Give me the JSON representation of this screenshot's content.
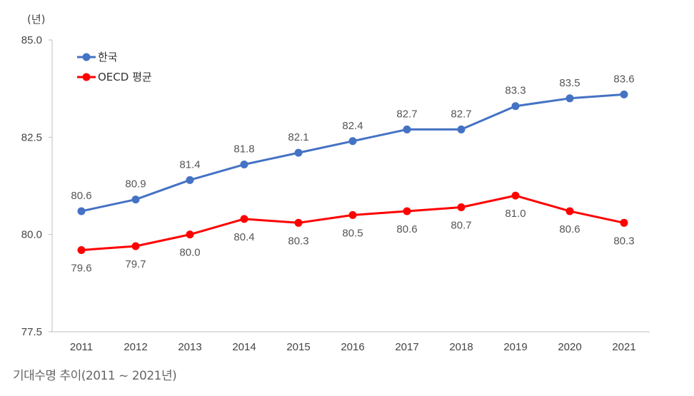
{
  "chart_data": {
    "type": "line",
    "unit_label": "(년)",
    "categories": [
      "2011",
      "2012",
      "2013",
      "2014",
      "2015",
      "2016",
      "2017",
      "2018",
      "2019",
      "2020",
      "2021"
    ],
    "ylim": [
      77.5,
      85.0
    ],
    "yticks": [
      "77.5",
      "80.0",
      "82.5",
      "85.0"
    ],
    "legend_position": "top-left",
    "series": [
      {
        "name": "한국",
        "color": "#4472c4",
        "values": [
          80.6,
          80.9,
          81.4,
          81.8,
          82.1,
          82.4,
          82.7,
          82.7,
          83.3,
          83.5,
          83.6
        ],
        "labels": [
          "80.6",
          "80.9",
          "81.4",
          "81.8",
          "82.1",
          "82.4",
          "82.7",
          "82.7",
          "83.3",
          "83.5",
          "83.6"
        ]
      },
      {
        "name": "OECD 평균",
        "color": "#ff0000",
        "values": [
          79.6,
          79.7,
          80.0,
          80.4,
          80.3,
          80.5,
          80.6,
          80.7,
          81.0,
          80.6,
          80.3
        ],
        "labels": [
          "79.6",
          "79.7",
          "80.0",
          "80.4",
          "80.3",
          "80.5",
          "80.6",
          "80.7",
          "81.0",
          "80.6",
          "80.3"
        ]
      }
    ],
    "caption": "기대수명 추이(2011 ~ 2021년)"
  }
}
